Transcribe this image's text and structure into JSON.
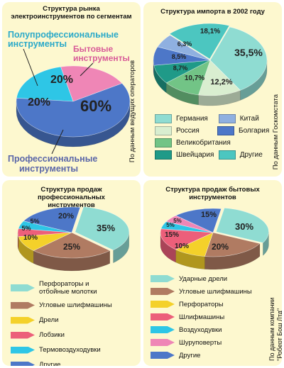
{
  "chart_data": [
    {
      "type": "pie",
      "title": "Структура рынка электроинструментов по сегментам",
      "side_note": "По данным ведущих операторов",
      "slices": [
        {
          "label": "Полупрофессиональные инструменты",
          "value": 20,
          "display": "20%",
          "color": "#2ec6e6"
        },
        {
          "label": "Бытовые инструменты",
          "value": 20,
          "display": "20%",
          "color": "#ef86b6"
        },
        {
          "label": "Профессиональные инструменты",
          "value": 60,
          "display": "60%",
          "color": "#4d77c8"
        }
      ]
    },
    {
      "type": "pie",
      "title": "Структура импорта в 2002 году",
      "side_note": "По данным Госкомстата",
      "slices": [
        {
          "label": "Другие",
          "value": 18.1,
          "display": "18,1%",
          "color": "#4cc6c0"
        },
        {
          "label": "Германия",
          "value": 35.5,
          "display": "35,5%",
          "color": "#8fdcd2"
        },
        {
          "label": "Россия",
          "value": 12.2,
          "display": "12,2%",
          "color": "#d9eed0"
        },
        {
          "label": "Великобритания",
          "value": 10.7,
          "display": "10,7%",
          "color": "#72c486"
        },
        {
          "label": "Швейцария",
          "value": 8.7,
          "display": "8,7%",
          "color": "#1f9a88"
        },
        {
          "label": "Болгария",
          "value": 8.5,
          "display": "8,5%",
          "color": "#4d77c8"
        },
        {
          "label": "Китай",
          "value": 6.3,
          "display": "6,3%",
          "color": "#8fb0e0"
        }
      ]
    },
    {
      "type": "pie",
      "title": "Структура продаж профессиональных инструментов",
      "slices": [
        {
          "label": "Перфораторы и отбойные молотки",
          "value": 35,
          "display": "35%",
          "color": "#8fdcd2"
        },
        {
          "label": "Угловые шлифмашины",
          "value": 25,
          "display": "25%",
          "color": "#b07b62"
        },
        {
          "label": "Дрели",
          "value": 10,
          "display": "10%",
          "color": "#f4d12a"
        },
        {
          "label": "Лобзики",
          "value": 5,
          "display": "5%",
          "color": "#ec5f7a"
        },
        {
          "label": "Термовоздуходувки",
          "value": 5,
          "display": "5%",
          "color": "#2ec6e6"
        },
        {
          "label": "Другие",
          "value": 20,
          "display": "20%",
          "color": "#4d77c8"
        }
      ]
    },
    {
      "type": "pie",
      "title": "Структура продаж бытовых инструментов",
      "side_note": "По данным компании \"Роберт Бош Лтд\"",
      "slices": [
        {
          "label": "Ударные дрели",
          "value": 30,
          "display": "30%",
          "color": "#8fdcd2"
        },
        {
          "label": "Угловые шлифмашины",
          "value": 20,
          "display": "20%",
          "color": "#b07b62"
        },
        {
          "label": "Перфораторы",
          "value": 10,
          "display": "10%",
          "color": "#f4d12a"
        },
        {
          "label": "Шлифмашины",
          "value": 15,
          "display": "15%",
          "color": "#ec5f7a"
        },
        {
          "label": "Воздуходувки",
          "value": 5,
          "display": "5%",
          "color": "#2ec6e6"
        },
        {
          "label": "Шуруповерты",
          "value": 5,
          "display": "5%",
          "color": "#ef86b6"
        },
        {
          "label": "Другие",
          "value": 15,
          "display": "15%",
          "color": "#4d77c8"
        }
      ]
    }
  ]
}
